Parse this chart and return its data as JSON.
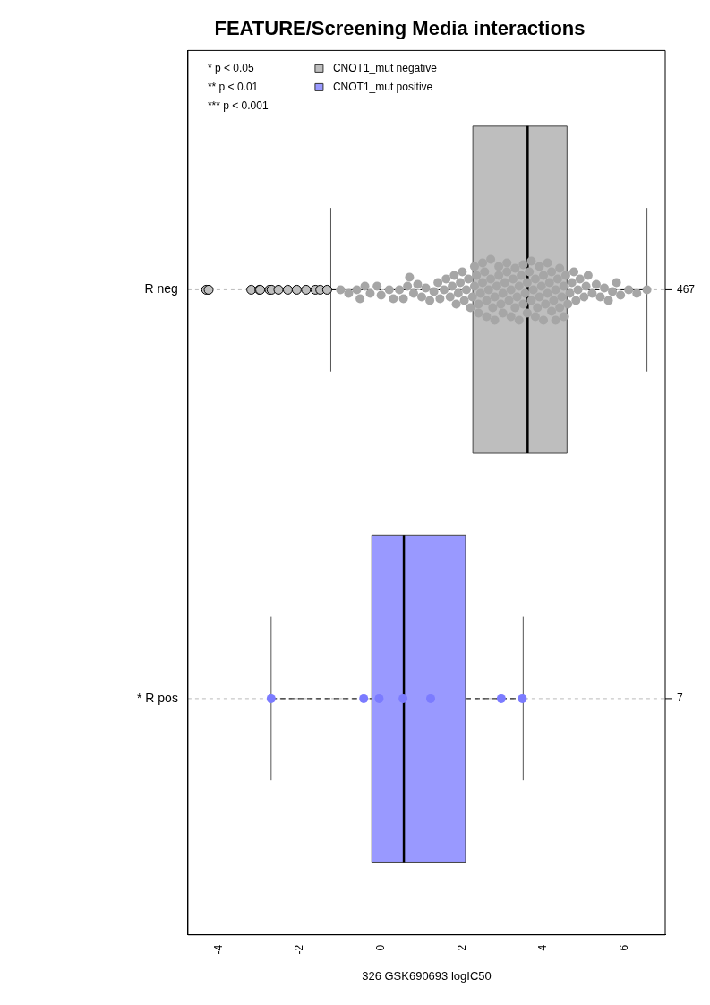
{
  "chart_data": {
    "type": "box",
    "orientation": "horizontal",
    "title": "FEATURE/Screening Media interactions",
    "xlabel": "326 GSK690693 logIC50",
    "categories": [
      "R neg",
      "* R pos"
    ],
    "xlim": [
      -4.76,
      7.0
    ],
    "xticks": [
      -4,
      -2,
      0,
      2,
      4,
      6
    ],
    "grid": "y",
    "legend": "top left",
    "annotations": [
      "* p < 0.05",
      "** p < 0.01",
      "*** p < 0.001",
      "467",
      "7"
    ],
    "series": [
      {
        "name": "CNOT1_mut negative",
        "color": "#bebebe",
        "boxes": [
          {
            "low": -1.24,
            "q1": 2.26,
            "median": 3.61,
            "q3": 4.58,
            "high": 6.55,
            "outliers": [
              -4.31,
              -4.25,
              -3.2,
              -3.0,
              -2.98,
              -2.75,
              -2.7,
              -2.53,
              -2.3,
              -2.08,
              -1.85,
              -1.62,
              -1.5,
              -1.33
            ]
          },
          null
        ]
      },
      {
        "name": "CNOT1_mut positive",
        "color": "#9999ff",
        "boxes": [
          null,
          {
            "low": -2.71,
            "q1": -0.23,
            "median": 0.56,
            "q3": 2.08,
            "high": 3.5
          }
        ]
      },
      {
        "type": "scatter",
        "color": "#a6a6a6",
        "x": [
          "R neg",
          "R neg",
          "R neg",
          "R neg",
          "R neg",
          "R neg",
          "R neg",
          "R neg",
          "R neg",
          "R neg",
          "R neg",
          "R neg",
          "R neg",
          "R neg",
          "R neg",
          "R neg",
          "R neg",
          "R neg",
          "R neg",
          "R neg",
          "R neg",
          "R neg",
          "R neg",
          "R neg",
          "R neg",
          "R neg",
          "R neg",
          "R neg",
          "R neg",
          "R neg",
          "R neg",
          "R neg",
          "R neg",
          "R neg",
          "R neg",
          "R neg",
          "R neg",
          "R neg",
          "R neg",
          "R neg",
          "R neg",
          "R neg",
          "R neg",
          "R neg",
          "R neg",
          "R neg",
          "R neg",
          "R neg",
          "R neg",
          "R neg",
          "R neg",
          "R neg",
          "R neg",
          "R neg",
          "R neg",
          "R neg",
          "R neg",
          "R neg",
          "R neg",
          "R neg",
          "R neg",
          "R neg",
          "R neg",
          "R neg",
          "R neg",
          "R neg",
          "R neg",
          "R neg",
          "R neg",
          "R neg",
          "R neg",
          "R neg",
          "R neg",
          "R neg",
          "R neg",
          "R neg",
          "R neg",
          "R neg",
          "R neg",
          "R neg",
          "R neg",
          "R neg",
          "R neg",
          "R neg",
          "R neg",
          "R neg",
          "R neg",
          "R neg",
          "R neg",
          "R neg",
          "R neg",
          "R neg",
          "R neg",
          "R neg",
          "R neg",
          "R neg",
          "R neg",
          "R neg",
          "R neg",
          "R neg",
          "R neg",
          "R neg",
          "R neg",
          "R neg",
          "R neg",
          "R neg",
          "R neg",
          "R neg",
          "R neg",
          "R neg",
          "R neg",
          "R neg",
          "R neg",
          "R neg",
          "R neg",
          "R neg",
          "R neg",
          "R neg",
          "R neg",
          "R neg",
          "R neg",
          "R neg",
          "R neg",
          "R neg",
          "R neg",
          "R neg"
        ],
        "values": [
          -1.0,
          -0.8,
          -0.6,
          -0.52,
          -0.4,
          -0.27,
          -0.1,
          0.0,
          0.2,
          0.3,
          0.45,
          0.55,
          0.65,
          0.7,
          0.8,
          0.9,
          1.0,
          1.1,
          1.2,
          1.3,
          1.4,
          1.45,
          1.55,
          1.6,
          1.7,
          1.75,
          1.8,
          1.85,
          1.9,
          1.95,
          2.0,
          2.05,
          2.1,
          2.15,
          2.2,
          2.25,
          2.3,
          2.35,
          2.4,
          2.45,
          2.5,
          2.55,
          2.6,
          2.65,
          2.7,
          2.75,
          2.8,
          2.85,
          2.9,
          2.95,
          3.0,
          3.05,
          3.1,
          3.15,
          3.2,
          3.25,
          3.3,
          3.35,
          3.4,
          3.45,
          3.5,
          3.55,
          3.6,
          3.65,
          3.7,
          3.75,
          3.8,
          3.85,
          3.9,
          3.95,
          4.0,
          4.05,
          4.1,
          4.15,
          4.2,
          4.25,
          4.3,
          4.35,
          4.4,
          4.45,
          4.5,
          4.55,
          4.6,
          2.3,
          2.4,
          2.5,
          2.6,
          2.7,
          2.8,
          2.9,
          3.0,
          3.1,
          3.2,
          3.3,
          3.4,
          3.5,
          3.6,
          3.7,
          3.8,
          3.9,
          4.0,
          4.1,
          4.2,
          4.3,
          4.4,
          4.5,
          4.65,
          4.7,
          4.75,
          4.8,
          4.85,
          4.9,
          5.0,
          5.05,
          5.1,
          5.2,
          5.3,
          5.4,
          5.5,
          5.6,
          5.7,
          5.8,
          5.9,
          6.1,
          6.3,
          6.55
        ]
      },
      {
        "type": "scatter",
        "color": "#7b7bff",
        "x": [
          "* R pos",
          "* R pos",
          "* R pos",
          "* R pos",
          "* R pos",
          "* R pos",
          "* R pos"
        ],
        "values": [
          -2.71,
          -0.43,
          -0.05,
          0.54,
          1.22,
          2.96,
          3.48
        ]
      }
    ]
  }
}
